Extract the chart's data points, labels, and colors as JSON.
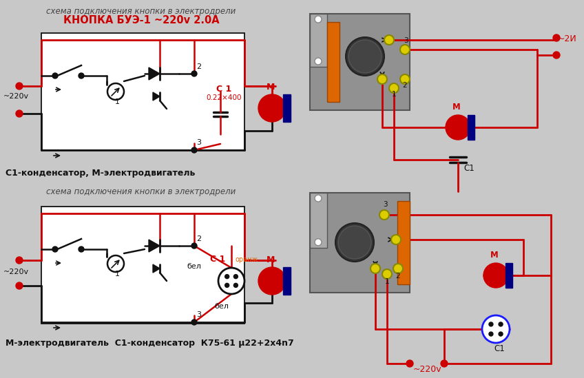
{
  "bg_color": "#c8c8c8",
  "title_top1": "схема подключения кнопки в электродрели",
  "title_top2": "КНОПКА БУЭ-1 ~220v 2.0А",
  "title_bottom1": "схема подключения кнопки в электродрели",
  "caption_top": "С1-конденсатор, М-электродвигатель",
  "caption_bottom": "М-электродвигатель  С1-конденсатор  К75-61 μ22+2х4n7",
  "red": "#cc0000",
  "blue": "#1a1aff",
  "dark": "#111111",
  "orange": "#dd6600",
  "box_gray": "#999999",
  "box_dark_gray": "#777777",
  "terminal_yellow": "#ddcc00",
  "navy": "#000080"
}
